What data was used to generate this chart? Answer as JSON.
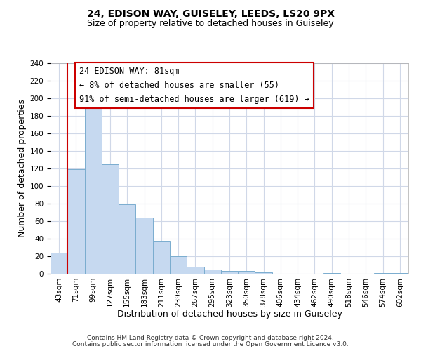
{
  "title": "24, EDISON WAY, GUISELEY, LEEDS, LS20 9PX",
  "subtitle": "Size of property relative to detached houses in Guiseley",
  "xlabel": "Distribution of detached houses by size in Guiseley",
  "ylabel": "Number of detached properties",
  "bar_labels": [
    "43sqm",
    "71sqm",
    "99sqm",
    "127sqm",
    "155sqm",
    "183sqm",
    "211sqm",
    "239sqm",
    "267sqm",
    "295sqm",
    "323sqm",
    "350sqm",
    "378sqm",
    "406sqm",
    "434sqm",
    "462sqm",
    "490sqm",
    "518sqm",
    "546sqm",
    "574sqm",
    "602sqm"
  ],
  "bar_heights": [
    24,
    119,
    197,
    125,
    79,
    64,
    37,
    20,
    8,
    5,
    3,
    3,
    2,
    0,
    0,
    0,
    1,
    0,
    0,
    1,
    1
  ],
  "bar_color": "#c6d9f0",
  "bar_edge_color": "#7aadcf",
  "vline_color": "#cc0000",
  "ylim": [
    0,
    240
  ],
  "yticks": [
    0,
    20,
    40,
    60,
    80,
    100,
    120,
    140,
    160,
    180,
    200,
    220,
    240
  ],
  "annotation_title": "24 EDISON WAY: 81sqm",
  "annotation_line1": "← 8% of detached houses are smaller (55)",
  "annotation_line2": "91% of semi-detached houses are larger (619) →",
  "annotation_box_color": "#ffffff",
  "annotation_box_edge": "#cc0000",
  "footer1": "Contains HM Land Registry data © Crown copyright and database right 2024.",
  "footer2": "Contains public sector information licensed under the Open Government Licence v3.0.",
  "title_fontsize": 10,
  "subtitle_fontsize": 9,
  "axis_label_fontsize": 9,
  "tick_fontsize": 7.5,
  "annotation_fontsize": 8.5,
  "footer_fontsize": 6.5,
  "background_color": "#ffffff",
  "grid_color": "#d0d8e8"
}
